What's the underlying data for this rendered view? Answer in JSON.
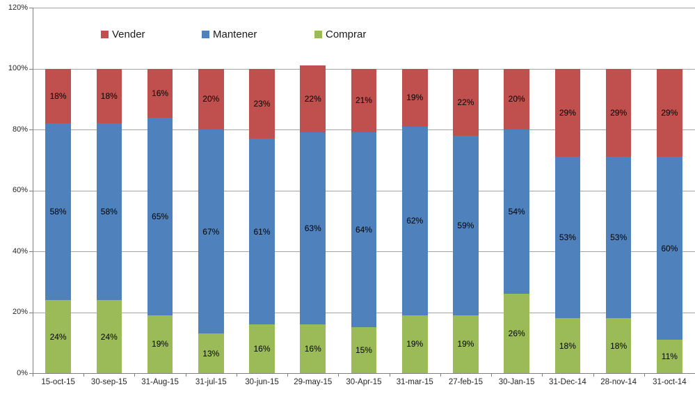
{
  "chart_data": {
    "type": "bar",
    "stacked": true,
    "title": "",
    "xlabel": "",
    "ylabel": "",
    "ylim": [
      0,
      120
    ],
    "y_ticks": [
      "0%",
      "20%",
      "40%",
      "60%",
      "80%",
      "100%",
      "120%"
    ],
    "y_tick_values": [
      0,
      20,
      40,
      60,
      80,
      100,
      120
    ],
    "grid": true,
    "legend_position": "top",
    "legend_order": [
      "Vender",
      "Mantener",
      "Comprar"
    ],
    "categories": [
      "15-oct-15",
      "30-sep-15",
      "31-Aug-15",
      "31-jul-15",
      "30-jun-15",
      "29-may-15",
      "30-Apr-15",
      "31-mar-15",
      "27-feb-15",
      "30-Jan-15",
      "31-Dec-14",
      "28-nov-14",
      "31-oct-14"
    ],
    "series": [
      {
        "name": "Vender",
        "color": "#C0504D",
        "stack_position": "top",
        "values": [
          18,
          18,
          16,
          20,
          23,
          22,
          21,
          19,
          22,
          20,
          29,
          29,
          29
        ],
        "labels": [
          "18%",
          "18%",
          "16%",
          "20%",
          "23%",
          "22%",
          "21%",
          "19%",
          "22%",
          "20%",
          "29%",
          "29%",
          "29%"
        ]
      },
      {
        "name": "Mantener",
        "color": "#4F81BD",
        "stack_position": "middle",
        "values": [
          58,
          58,
          65,
          67,
          61,
          63,
          64,
          62,
          59,
          54,
          53,
          53,
          60
        ],
        "labels": [
          "58%",
          "58%",
          "65%",
          "67%",
          "61%",
          "63%",
          "64%",
          "62%",
          "59%",
          "54%",
          "53%",
          "53%",
          "60%"
        ]
      },
      {
        "name": "Comprar",
        "color": "#9BBB59",
        "stack_position": "bottom",
        "values": [
          24,
          24,
          19,
          13,
          16,
          16,
          15,
          19,
          19,
          26,
          18,
          18,
          11
        ],
        "labels": [
          "24%",
          "24%",
          "19%",
          "13%",
          "16%",
          "16%",
          "15%",
          "19%",
          "19%",
          "26%",
          "18%",
          "18%",
          "11%"
        ]
      }
    ],
    "colors": {
      "gridline": "#a3a3a3",
      "axis": "#7f7f7f",
      "data_label": "#000000",
      "tick_label": "#262626"
    }
  }
}
